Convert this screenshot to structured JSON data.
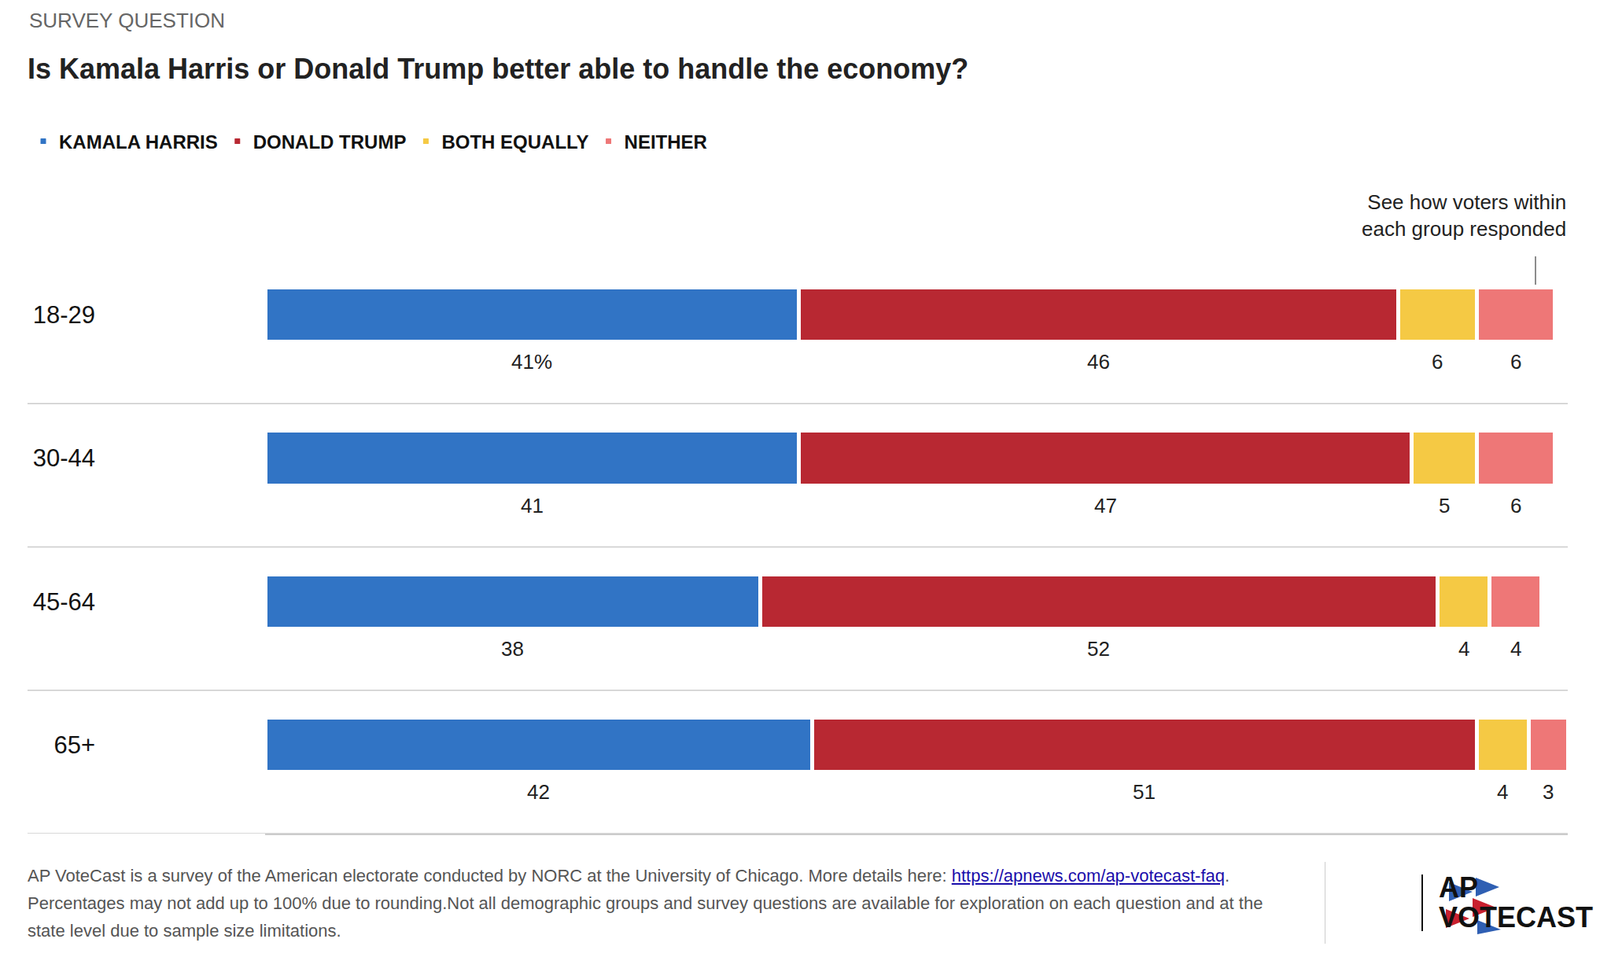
{
  "chart_data": {
    "type": "bar",
    "orientation": "horizontal",
    "stacked": true,
    "data_labels": true,
    "tick_labels": "y",
    "grid": false,
    "legend": "top left",
    "supertitle": "SURVEY QUESTION",
    "title": "Is Kamala Harris or Donald Trump better able to handle the economy?",
    "categories": [
      "18-29",
      "30-44",
      "45-64",
      "65+"
    ],
    "series": [
      {
        "name": "KAMALA HARRIS",
        "color": "#3174c5",
        "values": [
          41,
          41,
          38,
          42
        ],
        "value_labels": [
          "41%",
          "41",
          "38",
          "42"
        ]
      },
      {
        "name": "DONALD TRUMP",
        "color": "#b82832",
        "values": [
          46,
          47,
          52,
          51
        ]
      },
      {
        "name": "BOTH EQUALLY",
        "color": "#f5c944",
        "values": [
          6,
          5,
          4,
          4
        ]
      },
      {
        "name": "NEITHER",
        "color": "#ee7777",
        "values": [
          6,
          6,
          4,
          3
        ]
      }
    ],
    "xlim": [
      0,
      100
    ],
    "xticks": [],
    "annotation": [
      "See how voters within",
      "each group responded"
    ],
    "footer": {
      "text_before": "AP VoteCast is a survey of the American electorate conducted by NORC at the University of Chicago. More details here: ",
      "link": "https://apnews.com/ap-votecast-faq",
      "text_after": ". Percentages may not add up to 100% due to rounding.Not all demographic groups and survey questions are available for exploration on each question and at the state level due to sample size limitations."
    },
    "logo": [
      "AP",
      "VOTECAST"
    ]
  }
}
